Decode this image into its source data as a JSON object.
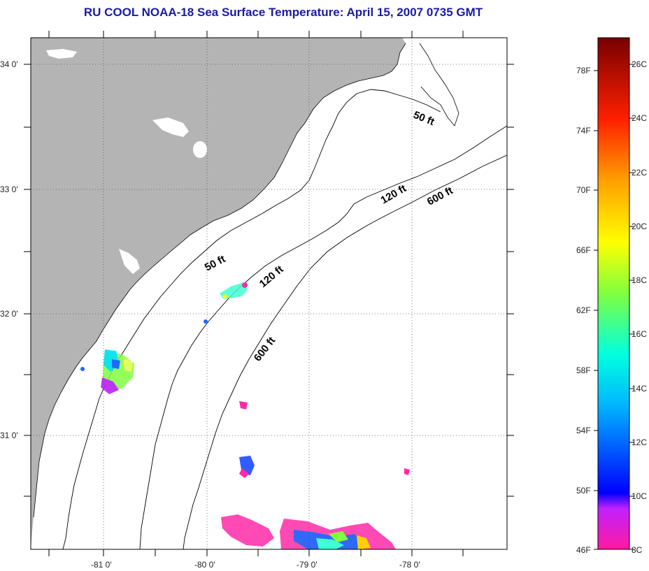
{
  "title": "RU COOL  NOAA-18  Sea Surface Temperature:  April 15, 2007 0735 GMT",
  "colors": {
    "land": "#b4b4b4",
    "ocean": "#ffffff",
    "title": "#1a1aa6",
    "grid": "#555555"
  },
  "axes": {
    "lat_labels": [
      "34 0'",
      "33 0'",
      "32 0'",
      "31 0'"
    ],
    "lon_labels": [
      "-81 0'",
      "-80 0'",
      "-79 0'",
      "-78 0'"
    ]
  },
  "isobaths": {
    "labels": [
      "50 ft",
      "50 ft",
      "120 ft",
      "120 ft",
      "600 ft",
      "600 ft"
    ]
  },
  "colorbar": {
    "fahrenheit": [
      "78F",
      "74F",
      "70F",
      "66F",
      "62F",
      "58F",
      "54F",
      "50F",
      "46F"
    ],
    "celsius": [
      "26C",
      "24C",
      "22C",
      "20C",
      "18C",
      "16C",
      "14C",
      "12C",
      "10C",
      "8C"
    ]
  }
}
